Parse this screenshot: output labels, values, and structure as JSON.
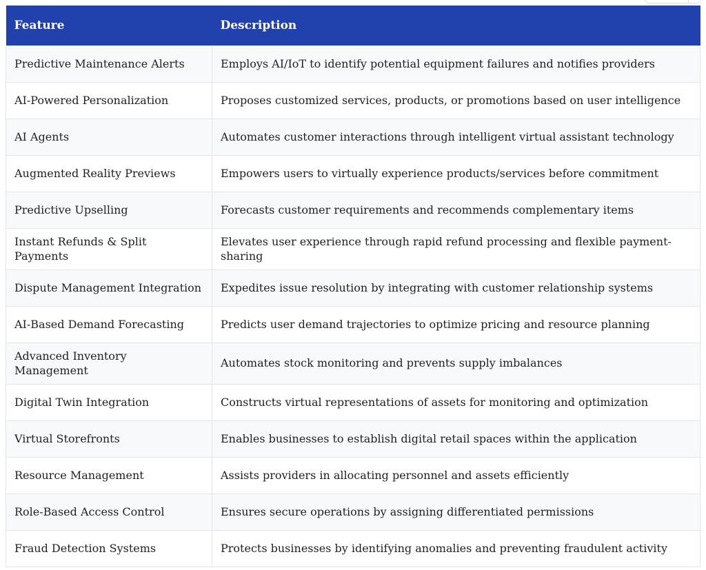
{
  "colors": {
    "header_bg": "#2141ad",
    "header_text": "#ffffff",
    "body_text": "#202122",
    "stripe": "#f8f9fa",
    "row_bg": "#ffffff",
    "border": "#e3e5e8",
    "toolbar_border": "#dedede",
    "page_bg": "#ffffff"
  },
  "table": {
    "columns": [
      "Feature",
      "Description"
    ],
    "rows": [
      {
        "feature": "Predictive Maintenance Alerts",
        "description": "Employs AI/IoT to identify potential equipment failures and notifies providers"
      },
      {
        "feature": "AI-Powered Personalization",
        "description": "Proposes customized services, products, or promotions based on user intelligence"
      },
      {
        "feature": "AI Agents",
        "description": "Automates customer interactions through intelligent virtual assistant technology"
      },
      {
        "feature": "Augmented Reality Previews",
        "description": "Empowers users to virtually experience products/services before commitment"
      },
      {
        "feature": "Predictive Upselling",
        "description": "Forecasts customer requirements and recommends complementary items"
      },
      {
        "feature": "Instant Refunds & Split Payments",
        "description": "Elevates user experience through rapid refund processing and flexible payment-sharing"
      },
      {
        "feature": "Dispute Management Integration",
        "description": "Expedites issue resolution by integrating with customer relationship systems"
      },
      {
        "feature": "AI-Based Demand Forecasting",
        "description": "Predicts user demand trajectories to optimize pricing and resource planning"
      },
      {
        "feature": "Advanced Inventory Management",
        "description": "Automates stock monitoring and prevents supply imbalances"
      },
      {
        "feature": "Digital Twin Integration",
        "description": "Constructs virtual representations of assets for monitoring and optimization"
      },
      {
        "feature": "Virtual Storefronts",
        "description": "Enables businesses to establish digital retail spaces within the application"
      },
      {
        "feature": "Resource Management",
        "description": "Assists providers in allocating personnel and assets efficiently"
      },
      {
        "feature": "Role-Based Access Control",
        "description": "Ensures secure operations by assigning differentiated permissions"
      },
      {
        "feature": "Fraud Detection Systems",
        "description": "Protects businesses by identifying anomalies and preventing fraudulent activity"
      }
    ]
  }
}
